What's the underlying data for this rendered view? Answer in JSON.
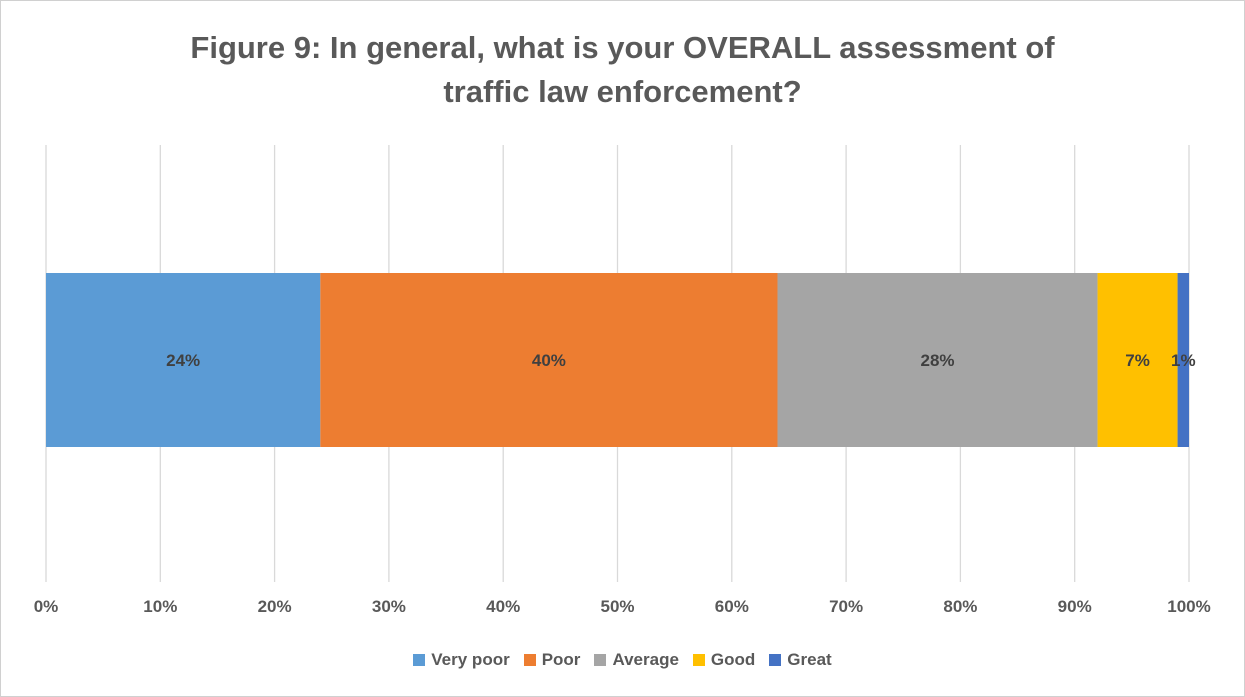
{
  "chart_data": {
    "type": "bar",
    "orientation": "horizontal",
    "stacked": true,
    "title": "Figure 9: In general, what is your OVERALL assessment of traffic law enforcement?",
    "title_lines": [
      "Figure 9: In general, what is your OVERALL assessment of",
      "traffic law enforcement?"
    ],
    "categories": [
      ""
    ],
    "series": [
      {
        "name": "Very poor",
        "values": [
          24
        ],
        "label": "24%",
        "color": "#5B9BD5"
      },
      {
        "name": "Poor",
        "values": [
          40
        ],
        "label": "40%",
        "color": "#ED7D31"
      },
      {
        "name": "Average",
        "values": [
          28
        ],
        "label": "28%",
        "color": "#A5A5A5"
      },
      {
        "name": "Good",
        "values": [
          7
        ],
        "label": "7%",
        "color": "#FFC000"
      },
      {
        "name": "Great",
        "values": [
          1
        ],
        "label": "1%",
        "color": "#4472C4"
      }
    ],
    "xlim": [
      0,
      100
    ],
    "x_ticks": [
      "0%",
      "10%",
      "20%",
      "30%",
      "40%",
      "50%",
      "60%",
      "70%",
      "80%",
      "90%",
      "100%"
    ],
    "grid": true,
    "legend_position": "bottom",
    "xlabel": "",
    "ylabel": ""
  }
}
